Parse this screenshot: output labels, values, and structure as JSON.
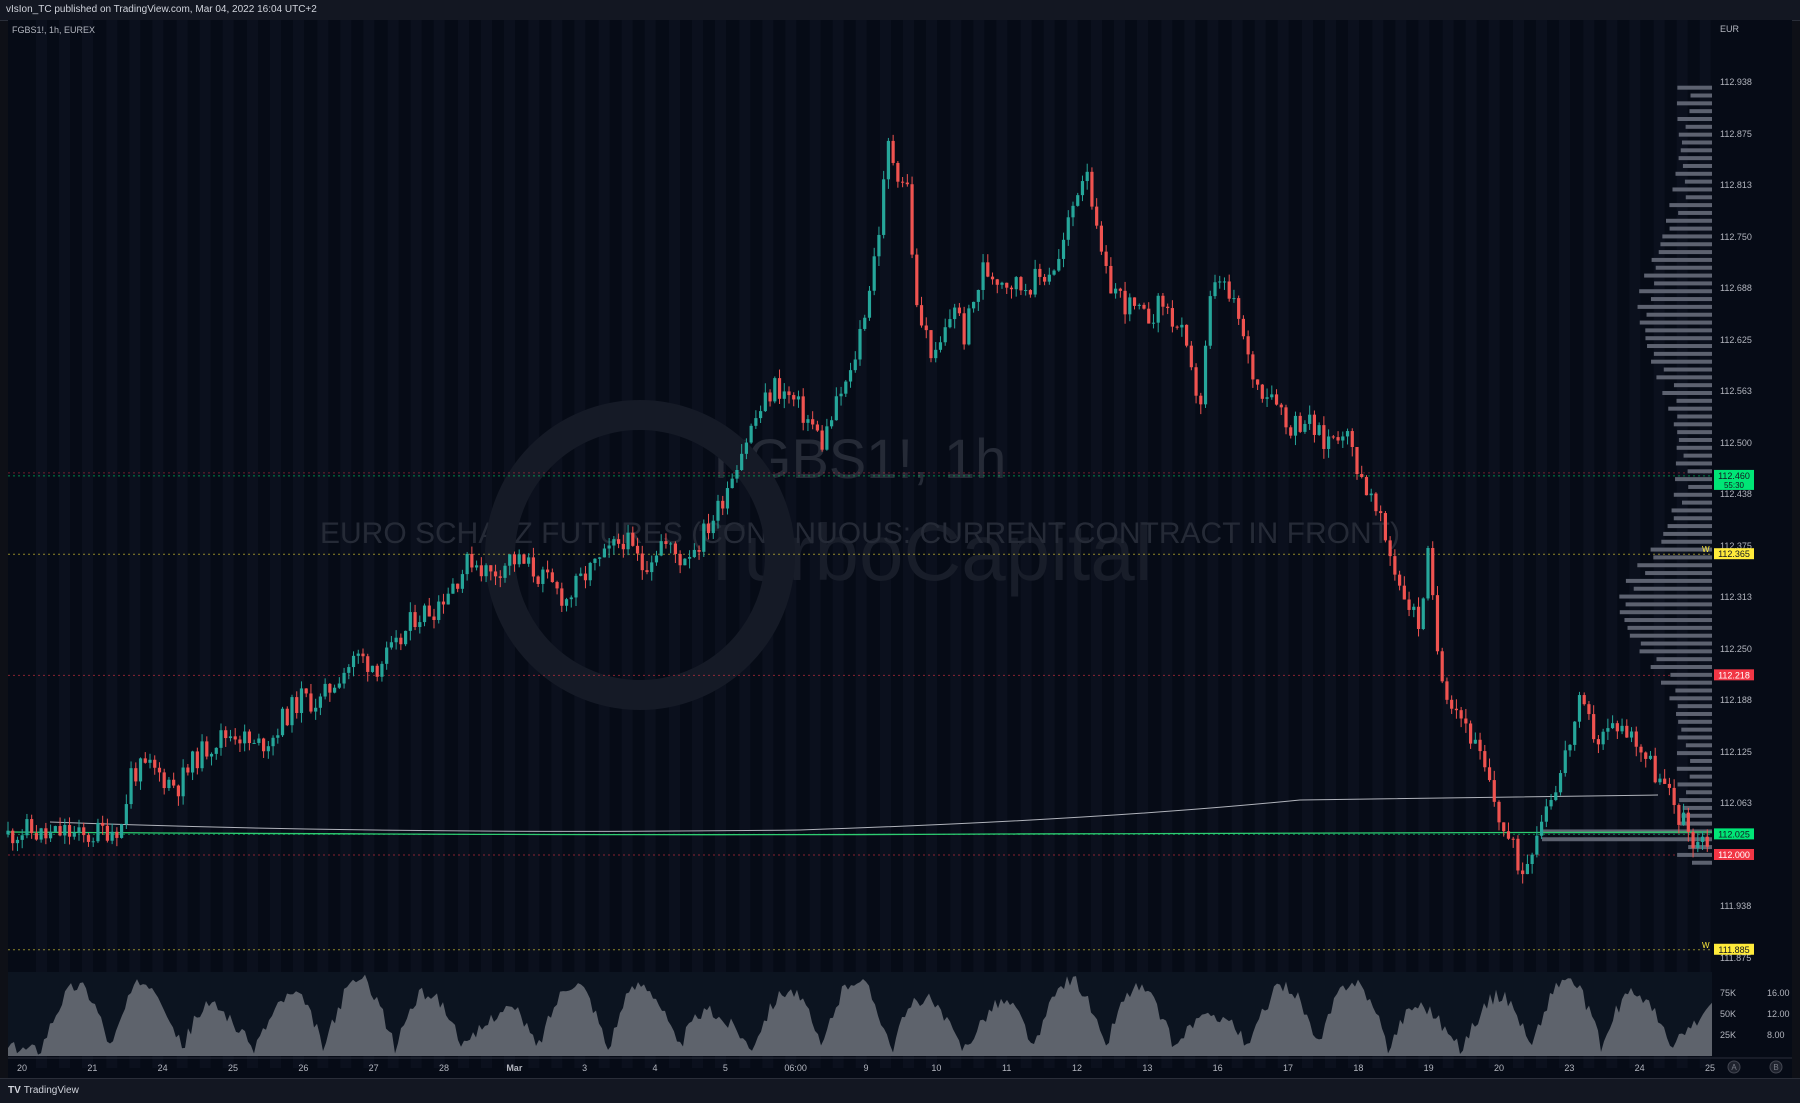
{
  "header": {
    "published": "vIsIon_TC published on TradingView.com, Mar 04, 2022 16:04 UTC+2"
  },
  "legend": {
    "symbol": "FGBS1!, 1h, EUREX",
    "currency": "EUR"
  },
  "watermark": {
    "symbol": "FGBS1!, 1h",
    "description": "EURO SCHATZ FUTURES (CONTINUOUS: CURRENT CONTRACT IN FRONT)",
    "brand": "TurboCapital"
  },
  "footer": {
    "brand": "TradingView"
  },
  "colors": {
    "up": "#26a69a",
    "down": "#ef5350",
    "bg": "#060b16",
    "grid": "#1c2130",
    "level_green": "#00e676",
    "level_red": "#f23645",
    "level_yellow": "#ffeb3b"
  },
  "chart_data": {
    "type": "candlestick",
    "symbol": "FGBS1!",
    "interval": "1h",
    "exchange": "EUREX",
    "ylim": [
      111.86,
      112.97
    ],
    "price_ticks": [
      "112.938",
      "112.875",
      "112.813",
      "112.750",
      "112.688",
      "112.625",
      "112.563",
      "112.500",
      "112.438",
      "112.375",
      "112.313",
      "112.250",
      "112.188",
      "112.125",
      "112.063",
      "112.000",
      "111.938",
      "111.875"
    ],
    "x_labels": [
      "20",
      "21",
      "24",
      "25",
      "26",
      "27",
      "28",
      "Mar",
      "3",
      "4",
      "5",
      "06:00",
      "9",
      "10",
      "11",
      "12",
      "13",
      "16",
      "17",
      "18",
      "19",
      "20",
      "23",
      "24",
      "25"
    ],
    "close_path": [
      [
        0,
        112.025
      ],
      [
        2,
        112.03
      ],
      [
        4,
        112.022
      ],
      [
        6,
        112.028
      ],
      [
        8,
        112.02
      ],
      [
        10,
        112.03
      ],
      [
        12,
        112.035
      ],
      [
        13,
        112.1
      ],
      [
        15,
        112.105
      ],
      [
        17,
        112.09
      ],
      [
        18,
        112.085
      ],
      [
        20,
        112.12
      ],
      [
        22,
        112.14
      ],
      [
        24,
        112.15
      ],
      [
        26,
        112.13
      ],
      [
        28,
        112.145
      ],
      [
        29,
        112.165
      ],
      [
        31,
        112.19
      ],
      [
        33,
        112.185
      ],
      [
        35,
        112.22
      ],
      [
        37,
        112.24
      ],
      [
        39,
        112.23
      ],
      [
        41,
        112.25
      ],
      [
        43,
        112.29
      ],
      [
        45,
        112.3
      ],
      [
        47,
        112.33
      ],
      [
        49,
        112.36
      ],
      [
        51,
        112.34
      ],
      [
        53,
        112.36
      ],
      [
        55,
        112.35
      ],
      [
        57,
        112.33
      ],
      [
        59,
        112.31
      ],
      [
        61,
        112.34
      ],
      [
        63,
        112.36
      ],
      [
        65,
        112.385
      ],
      [
        67,
        112.35
      ],
      [
        69,
        112.38
      ],
      [
        71,
        112.36
      ],
      [
        73,
        112.38
      ],
      [
        75,
        112.42
      ],
      [
        77,
        112.48
      ],
      [
        79,
        112.53
      ],
      [
        81,
        112.57
      ],
      [
        83,
        112.55
      ],
      [
        85,
        112.52
      ],
      [
        86,
        112.5
      ],
      [
        88,
        112.56
      ],
      [
        89,
        112.58
      ],
      [
        91,
        112.69
      ],
      [
        92,
        112.76
      ],
      [
        93,
        112.86
      ],
      [
        94,
        112.83
      ],
      [
        95,
        112.81
      ],
      [
        96,
        112.66
      ],
      [
        98,
        112.6
      ],
      [
        100,
        112.67
      ],
      [
        101,
        112.63
      ],
      [
        103,
        112.71
      ],
      [
        105,
        112.7
      ],
      [
        107,
        112.69
      ],
      [
        109,
        112.7
      ],
      [
        111,
        112.72
      ],
      [
        113,
        112.81
      ],
      [
        114,
        112.84
      ],
      [
        115,
        112.75
      ],
      [
        116,
        112.7
      ],
      [
        118,
        112.67
      ],
      [
        120,
        112.65
      ],
      [
        122,
        112.67
      ],
      [
        124,
        112.63
      ],
      [
        125,
        112.58
      ],
      [
        126,
        112.55
      ],
      [
        127,
        112.67
      ],
      [
        128,
        112.7
      ],
      [
        130,
        112.65
      ],
      [
        131,
        112.6
      ],
      [
        132,
        112.57
      ],
      [
        134,
        112.56
      ],
      [
        135,
        112.52
      ],
      [
        137,
        112.53
      ],
      [
        139,
        112.5
      ],
      [
        141,
        112.52
      ],
      [
        143,
        112.46
      ],
      [
        145,
        112.4
      ],
      [
        147,
        112.33
      ],
      [
        149,
        112.28
      ],
      [
        150,
        112.36
      ],
      [
        151,
        112.25
      ],
      [
        152,
        112.2
      ],
      [
        154,
        112.16
      ],
      [
        156,
        112.1
      ],
      [
        158,
        112.03
      ],
      [
        160,
        111.98
      ],
      [
        162,
        112.05
      ],
      [
        164,
        112.1
      ],
      [
        166,
        112.18
      ],
      [
        168,
        112.14
      ],
      [
        170,
        112.16
      ],
      [
        172,
        112.14
      ],
      [
        174,
        112.1
      ],
      [
        176,
        112.06
      ],
      [
        178,
        112.02
      ],
      [
        180,
        112.02
      ]
    ],
    "volume_profile_anchor": 112.025,
    "price_levels": [
      {
        "price": "112.460",
        "extra": "55:30",
        "color": "#00e676"
      },
      {
        "price": "112.365",
        "color": "#ffeb3b",
        "label": "W"
      },
      {
        "price": "112.218",
        "color": "#f23645"
      },
      {
        "price": "112.025",
        "color": "#00e676"
      },
      {
        "price": "112.000",
        "color": "#f23645"
      },
      {
        "price": "111.885",
        "color": "#ffeb3b",
        "label": "W"
      }
    ],
    "volume_ticks": [
      "75K",
      "50K",
      "25K"
    ],
    "volume_values": [
      75000,
      50000,
      25000
    ],
    "indicator_ticks": [
      "16.00",
      "12.00",
      "8.00"
    ],
    "indicator_values": [
      16,
      12,
      8
    ],
    "time_scale_buttons": [
      "A",
      "B"
    ]
  }
}
